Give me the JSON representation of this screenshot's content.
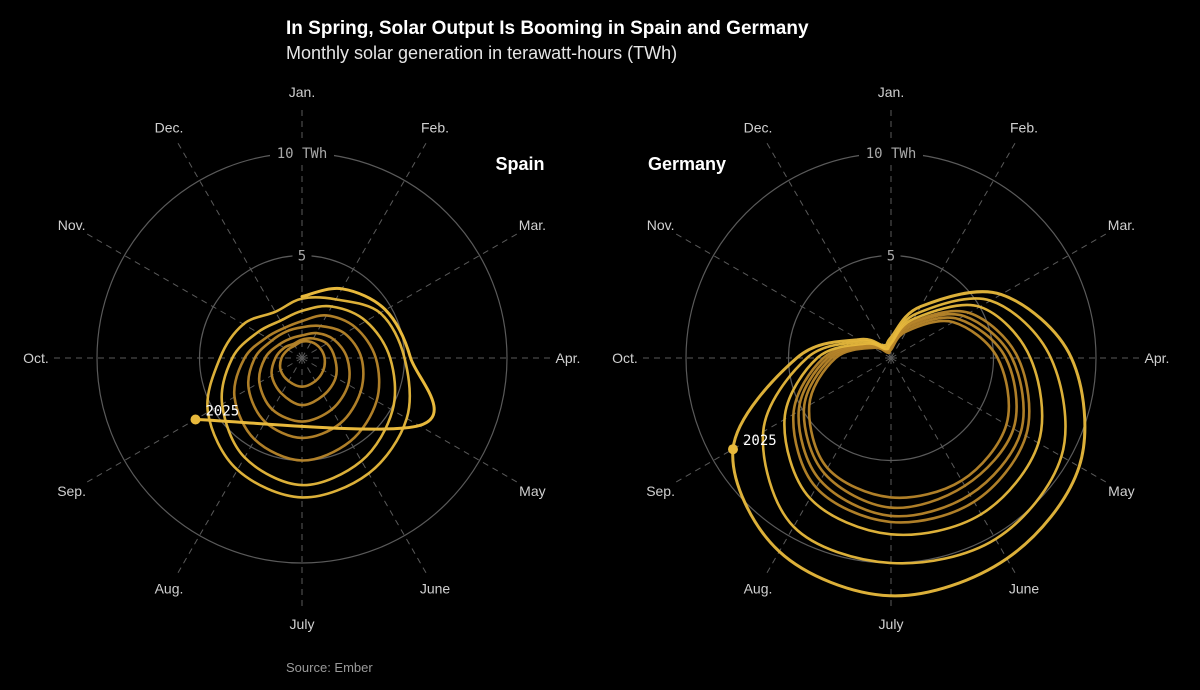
{
  "header": {
    "title": "In Spring, Solar Output Is Booming in Spain and Germany",
    "subtitle": "Monthly solar generation in terawatt-hours (TWh)"
  },
  "footer": {
    "source": "Source: Ember"
  },
  "colors": {
    "background": "#000000",
    "series": "#e8b93c",
    "series_dim": "#b8862a",
    "grid": "#5a5a5a"
  },
  "chart_data": [
    {
      "type": "radial-line",
      "title": "Spain",
      "months": [
        "Jan.",
        "Feb.",
        "Mar.",
        "Apr.",
        "May",
        "June",
        "July",
        "Aug.",
        "Sep.",
        "Oct.",
        "Nov.",
        "Dec."
      ],
      "rings": [
        {
          "value": 5,
          "label": "5"
        },
        {
          "value": 10,
          "label": "10 TWh"
        }
      ],
      "rmax": 10,
      "highlight_label": "2025",
      "series": [
        {
          "values": [
            0.8,
            0.9,
            1.0,
            1.1,
            1.2,
            1.3,
            1.4,
            1.3,
            1.2,
            1.0,
            0.8,
            0.7
          ]
        },
        {
          "values": [
            0.9,
            1.1,
            1.4,
            1.6,
            1.9,
            2.1,
            2.3,
            2.0,
            1.7,
            1.3,
            1.0,
            0.8
          ]
        },
        {
          "values": [
            1.1,
            1.4,
            1.8,
            2.2,
            2.6,
            2.9,
            3.1,
            2.9,
            2.4,
            1.8,
            1.3,
            1.1
          ]
        },
        {
          "values": [
            1.5,
            1.8,
            2.4,
            2.9,
            3.3,
            3.7,
            3.9,
            3.6,
            3.0,
            2.3,
            1.7,
            1.5
          ]
        },
        {
          "values": [
            1.8,
            2.4,
            3.0,
            3.6,
            4.2,
            4.7,
            5.0,
            4.6,
            3.8,
            2.8,
            2.0,
            1.7
          ]
        },
        {
          "values": [
            2.3,
            2.9,
            3.6,
            4.3,
            5.1,
            5.8,
            6.2,
            5.6,
            4.5,
            3.4,
            2.5,
            2.1
          ]
        },
        {
          "values": [
            2.9,
            3.3,
            4.4,
            5.0,
            5.9,
            6.5,
            6.8,
            6.3,
            5.3,
            4.0,
            3.3,
            2.6
          ]
        },
        {
          "values": [
            3.0,
            3.9,
            4.7,
            5.3,
            6.6,
            null,
            null,
            null,
            6.0,
            null,
            null,
            null
          ]
        }
      ]
    },
    {
      "type": "radial-line",
      "title": "Germany",
      "months": [
        "Jan.",
        "Feb.",
        "Mar.",
        "Apr.",
        "May",
        "June",
        "July",
        "Aug.",
        "Sep.",
        "Oct.",
        "Nov.",
        "Dec."
      ],
      "rings": [
        {
          "value": 5,
          "label": "5"
        },
        {
          "value": 10,
          "label": "10 TWh"
        }
      ],
      "rmax": 10,
      "highlight_label": "2025",
      "series": [
        {
          "values": [
            0.4,
            1.5,
            3.5,
            5.2,
            6.5,
            6.9,
            6.8,
            6.2,
            4.6,
            2.7,
            1.0,
            0.3
          ]
        },
        {
          "values": [
            0.5,
            1.7,
            3.8,
            5.6,
            6.9,
            7.2,
            7.3,
            6.5,
            4.9,
            2.9,
            1.1,
            0.4
          ]
        },
        {
          "values": [
            0.6,
            1.9,
            4.1,
            5.9,
            7.3,
            7.7,
            7.7,
            6.9,
            5.2,
            3.1,
            1.2,
            0.4
          ]
        },
        {
          "values": [
            0.6,
            2.0,
            4.4,
            6.2,
            7.6,
            8.1,
            8.0,
            7.3,
            5.5,
            3.3,
            1.3,
            0.5
          ]
        },
        {
          "values": [
            0.7,
            2.2,
            5.0,
            6.8,
            8.3,
            8.8,
            8.6,
            7.9,
            6.0,
            3.6,
            1.4,
            0.5
          ]
        },
        {
          "values": [
            0.8,
            2.5,
            5.6,
            7.8,
            9.6,
            10.2,
            10.0,
            9.5,
            7.2,
            4.1,
            1.6,
            0.6
          ]
        },
        {
          "values": [
            1.0,
            2.9,
            6.2,
            8.8,
            10.6,
            11.3,
            11.6,
            10.9,
            8.9,
            4.6,
            1.8,
            0.7
          ]
        }
      ]
    }
  ]
}
